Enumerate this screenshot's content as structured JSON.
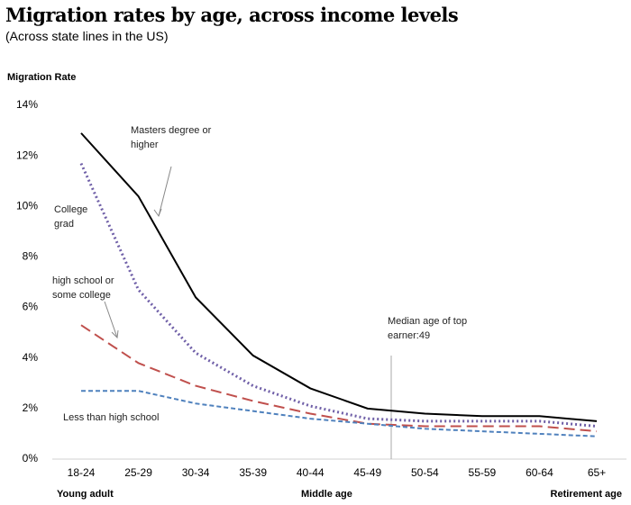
{
  "chart_data": {
    "type": "line",
    "title": "Migration rates by age, across income levels",
    "subtitle": "(Across state lines in the US)",
    "y_label": "Migration Rate",
    "categories": [
      "18-24",
      "25-29",
      "30-34",
      "35-39",
      "40-44",
      "45-49",
      "50-54",
      "55-59",
      "60-64",
      "65+"
    ],
    "series": [
      {
        "name": "Masters degree or higher",
        "color": "#000000",
        "dash": "solid",
        "values": [
          12.9,
          10.4,
          6.4,
          4.1,
          2.8,
          2.0,
          1.8,
          1.7,
          1.7,
          1.5
        ]
      },
      {
        "name": "College grad",
        "color": "#7060a8",
        "dash": "dot",
        "values": [
          11.7,
          6.7,
          4.2,
          2.9,
          2.1,
          1.6,
          1.5,
          1.5,
          1.5,
          1.3
        ]
      },
      {
        "name": "high school or some college",
        "color": "#c0504d",
        "dash": "long",
        "values": [
          5.3,
          3.8,
          2.9,
          2.3,
          1.8,
          1.4,
          1.3,
          1.3,
          1.3,
          1.1
        ]
      },
      {
        "name": "Less than high school",
        "color": "#4f81bd",
        "dash": "short",
        "values": [
          2.7,
          2.7,
          2.2,
          1.9,
          1.6,
          1.4,
          1.2,
          1.1,
          1.0,
          0.9
        ]
      }
    ],
    "ylim": [
      0,
      14
    ],
    "yticks": [
      {
        "value": 0,
        "label": "0%"
      },
      {
        "value": 2,
        "label": "2%"
      },
      {
        "value": 4,
        "label": "4%"
      },
      {
        "value": 6,
        "label": "6%"
      },
      {
        "value": 8,
        "label": "8%"
      },
      {
        "value": 10,
        "label": "10%"
      },
      {
        "value": 12,
        "label": "12%"
      },
      {
        "value": 14,
        "label": "14%"
      }
    ],
    "grid": false,
    "annotations": [
      "Median age of top earner:49"
    ],
    "group_labels": [
      "Young adult",
      "Middle age",
      "Retirement age"
    ]
  }
}
